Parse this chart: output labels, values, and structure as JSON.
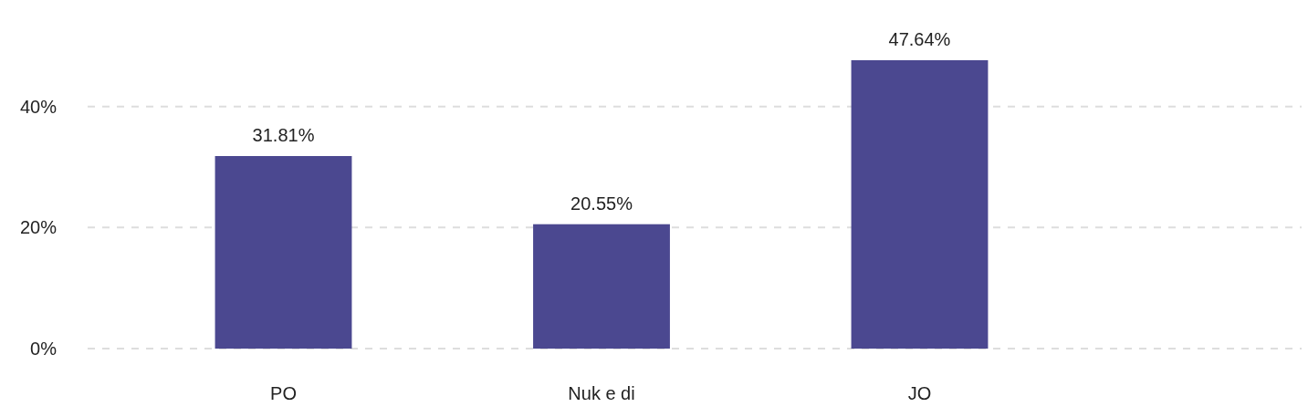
{
  "chart_data": {
    "type": "bar",
    "categories": [
      "PO",
      "Nuk e di",
      "JO"
    ],
    "values": [
      31.81,
      20.55,
      47.64
    ],
    "color": "#4b4890",
    "value_labels": [
      "31.81%",
      "20.55%",
      "47.64%"
    ],
    "ylim": [
      0,
      47.64
    ],
    "yticks": [
      {
        "value": 0,
        "label": "0%"
      },
      {
        "value": 20,
        "label": "20%"
      },
      {
        "value": 40,
        "label": "40%"
      }
    ],
    "grid": "y"
  }
}
